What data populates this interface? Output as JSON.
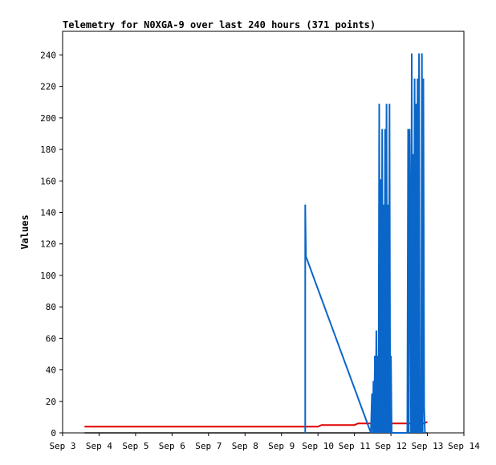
{
  "chart_data": {
    "type": "line",
    "title": "Telemetry for N0XGA-9 over last 240 hours (371 points)",
    "xlabel": "",
    "ylabel": "Values",
    "x_ticks": [
      "Sep 3",
      "Sep 4",
      "Sep 5",
      "Sep 6",
      "Sep 7",
      "Sep 8",
      "Sep 9",
      "Sep 10",
      "Sep 11",
      "Sep 12",
      "Sep 13",
      "Sep 14"
    ],
    "xlim_days": [
      3,
      14
    ],
    "ylim": [
      0,
      255
    ],
    "y_ticks": [
      0,
      20,
      40,
      60,
      80,
      100,
      120,
      140,
      160,
      180,
      200,
      220,
      240
    ],
    "grid": false,
    "legend": "none",
    "series": [
      {
        "color": "#e00000",
        "points": [
          [
            3.6,
            4
          ],
          [
            9.5,
            4
          ],
          [
            10.0,
            4
          ],
          [
            10.1,
            5
          ],
          [
            11.0,
            5
          ],
          [
            11.1,
            6
          ],
          [
            12.5,
            6
          ],
          [
            12.9,
            6
          ],
          [
            13.0,
            7
          ]
        ]
      },
      {
        "color": "#111111",
        "points": [
          [
            3.6,
            0
          ],
          [
            13.0,
            0
          ]
        ]
      },
      {
        "color": "#0a66c8",
        "points": [
          [
            9.65,
            0
          ],
          [
            9.65,
            145
          ],
          [
            9.67,
            112
          ],
          [
            11.45,
            0
          ],
          [
            11.48,
            25
          ],
          [
            11.5,
            0
          ],
          [
            11.52,
            33
          ],
          [
            11.54,
            0
          ],
          [
            11.56,
            49
          ],
          [
            11.58,
            0
          ],
          [
            11.6,
            65
          ],
          [
            11.62,
            0
          ],
          [
            11.64,
            49
          ],
          [
            11.66,
            0
          ],
          [
            11.68,
            209
          ],
          [
            11.7,
            0
          ],
          [
            11.72,
            161
          ],
          [
            11.74,
            0
          ],
          [
            11.76,
            193
          ],
          [
            11.78,
            0
          ],
          [
            11.8,
            145
          ],
          [
            11.82,
            0
          ],
          [
            11.84,
            193
          ],
          [
            11.86,
            0
          ],
          [
            11.88,
            209
          ],
          [
            11.9,
            0
          ],
          [
            11.92,
            145
          ],
          [
            11.94,
            0
          ],
          [
            11.96,
            209
          ],
          [
            11.98,
            0
          ],
          [
            12.0,
            49
          ],
          [
            12.02,
            0
          ],
          [
            12.45,
            0
          ],
          [
            12.47,
            193
          ],
          [
            12.49,
            0
          ],
          [
            12.51,
            193
          ],
          [
            12.53,
            129
          ],
          [
            12.55,
            0
          ],
          [
            12.57,
            241
          ],
          [
            12.59,
            0
          ],
          [
            12.61,
            177
          ],
          [
            12.63,
            0
          ],
          [
            12.65,
            225
          ],
          [
            12.67,
            0
          ],
          [
            12.69,
            209
          ],
          [
            12.71,
            0
          ],
          [
            12.73,
            225
          ],
          [
            12.75,
            0
          ],
          [
            12.77,
            241
          ],
          [
            12.79,
            0
          ],
          [
            12.81,
            17
          ],
          [
            12.83,
            0
          ],
          [
            12.85,
            241
          ],
          [
            12.87,
            0
          ],
          [
            12.89,
            225
          ],
          [
            12.91,
            17
          ],
          [
            12.93,
            0
          ]
        ]
      }
    ]
  }
}
